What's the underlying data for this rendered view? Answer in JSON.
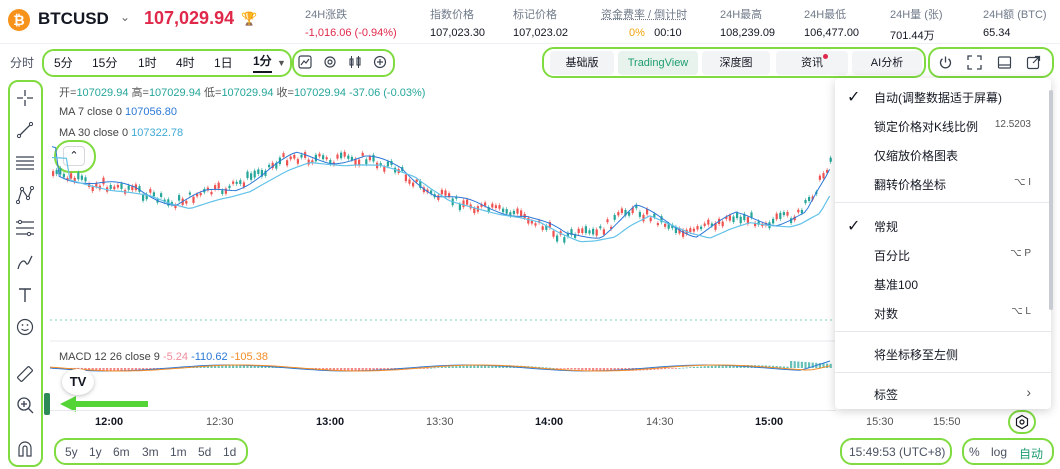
{
  "header": {
    "coin_symbol": "₿",
    "symbol": "BTCUSD",
    "price": "107,029.94",
    "stats": [
      {
        "label": "24H涨跌",
        "value": "-1,016.06 (-0.94%)"
      },
      {
        "label": "指数价格",
        "value": "107,023.30"
      },
      {
        "label": "标记价格",
        "value": "107,023.02"
      },
      {
        "label": "资金费率 / 倒计时",
        "value_rate": "0%",
        "value_countdown": "00:10"
      },
      {
        "label": "24H最高",
        "value": "108,239.09"
      },
      {
        "label": "24H最低",
        "value": "106,477.00"
      },
      {
        "label": "24H量 (张)",
        "value": "701.44万"
      },
      {
        "label": "24H额 (BTC)",
        "value": "65.34"
      }
    ]
  },
  "toolbar": {
    "timeshare": "分时",
    "intervals": [
      "5分",
      "15分",
      "1时",
      "4时",
      "1日",
      "1分"
    ],
    "views": [
      "基础版",
      "TradingView",
      "深度图"
    ],
    "news": "资讯",
    "ai": "AI分析"
  },
  "legend": {
    "ohlc_open_label": "开=",
    "ohlc_open": "107029.94",
    "ohlc_high_label": "高=",
    "ohlc_high": "107029.94",
    "ohlc_low_label": "低=",
    "ohlc_low": "107029.94",
    "ohlc_close_label": "收=",
    "ohlc_close": "107029.94",
    "ohlc_change": "-37.06 (-0.03%)",
    "ma7_label": "MA 7 close 0",
    "ma7_value": "107056.80",
    "ma30_label": "MA 30 close 0",
    "ma30_value": "107322.78",
    "macd_label": "MACD 12 26 close 9",
    "macd_hist": "-5.24",
    "macd_line": "-110.62",
    "macd_signal": "-105.38"
  },
  "time_axis": [
    "12:00",
    "12:30",
    "13:00",
    "13:30",
    "14:00",
    "14:30",
    "15:00",
    "15:30",
    "15:50"
  ],
  "bottom": {
    "ranges": [
      "5y",
      "1y",
      "6m",
      "3m",
      "1m",
      "5d",
      "1d"
    ],
    "clock": "15:49:53 (UTC+8)",
    "percent": "%",
    "log": "log",
    "auto": "自动"
  },
  "menu": {
    "items": [
      {
        "label": "自动(调整数据适于屏幕)",
        "checked": true,
        "shortcut": ""
      },
      {
        "label": "锁定价格对K线比例",
        "checked": false,
        "shortcut": "12.5203"
      },
      {
        "label": "仅缩放价格图表",
        "checked": false,
        "shortcut": ""
      },
      {
        "label": "翻转价格坐标",
        "checked": false,
        "shortcut": "⌥ I"
      },
      {
        "label": "常规",
        "checked": true,
        "shortcut": ""
      },
      {
        "label": "百分比",
        "checked": false,
        "shortcut": "⌥ P"
      },
      {
        "label": "基准100",
        "checked": false,
        "shortcut": ""
      },
      {
        "label": "对数",
        "checked": false,
        "shortcut": "⌥ L"
      },
      {
        "label": "将坐标移至左侧",
        "checked": false,
        "shortcut": ""
      },
      {
        "label": "标签",
        "checked": false,
        "shortcut": "›"
      }
    ]
  },
  "colors": {
    "up": "#26a69a",
    "down": "#ef5350",
    "accent": "#1e9d6f",
    "highlight": "#7fdb3f",
    "ma7": "#2b78d6",
    "ma30": "#62c2e8"
  }
}
